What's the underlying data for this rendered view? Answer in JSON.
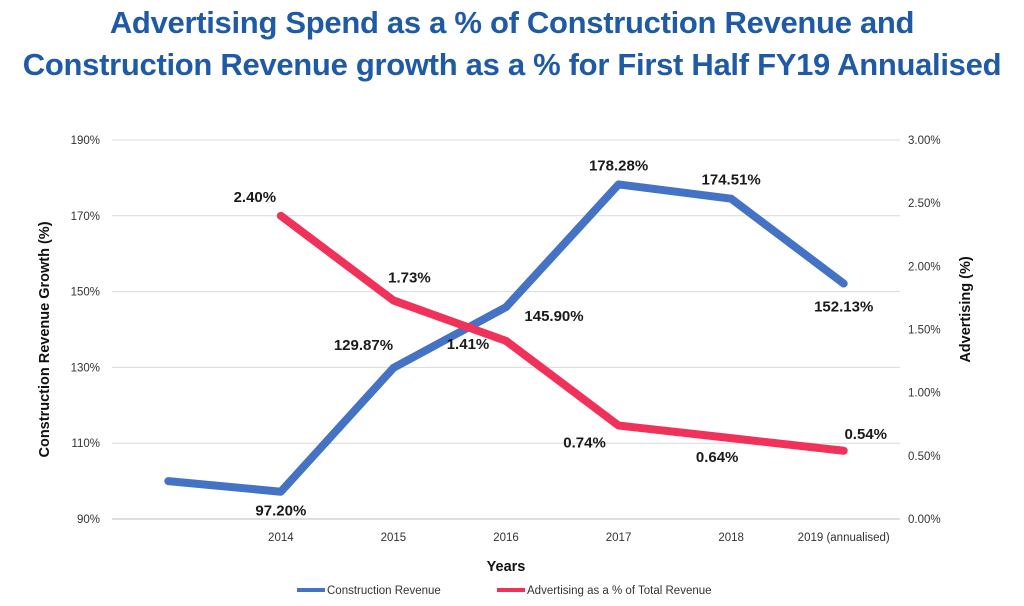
{
  "chart_data": {
    "type": "line",
    "title_line1": "Advertising Spend as a % of Construction Revenue and",
    "title_line2": "Construction Revenue growth as a % for First Half FY19 Annualised",
    "xlabel": "Years",
    "ylabel_left": "Construction Revenue Growth (%)",
    "ylabel_right": "Advertising (%)",
    "categories": [
      "",
      "2014",
      "2015",
      "2016",
      "2017",
      "2018",
      "2019 (annualised)"
    ],
    "y_left": {
      "min": 90,
      "max": 190,
      "step": 20,
      "ticks": [
        "90%",
        "110%",
        "130%",
        "150%",
        "170%",
        "190%"
      ]
    },
    "y_right": {
      "min": 0,
      "max": 3.0,
      "step": 0.5,
      "ticks": [
        "0.00%",
        "0.50%",
        "1.00%",
        "1.50%",
        "2.00%",
        "2.50%",
        "3.00%"
      ]
    },
    "grid": true,
    "legend_position": "bottom",
    "series": [
      {
        "name": "Construction Revenue",
        "axis": "left",
        "color": "#4472c4",
        "values": [
          100.0,
          97.2,
          129.87,
          145.9,
          178.28,
          174.51,
          152.13
        ],
        "labels": [
          null,
          "97.20%",
          "129.87%",
          "145.90%",
          "178.28%",
          "174.51%",
          "152.13%"
        ]
      },
      {
        "name": "Advertising as a % of Total Revenue",
        "axis": "right",
        "color": "#f0325a",
        "values": [
          null,
          2.4,
          1.73,
          1.41,
          0.74,
          0.64,
          0.54
        ],
        "labels": [
          null,
          "2.40%",
          "1.73%",
          "1.41%",
          "0.74%",
          "0.64%",
          "0.54%"
        ]
      }
    ]
  }
}
